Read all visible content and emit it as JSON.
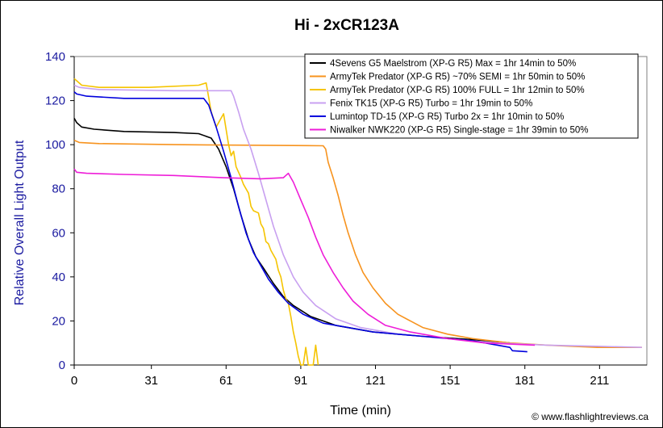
{
  "chart_data": {
    "type": "line",
    "title": "Hi - 2xCR123A",
    "xlabel": "Time (min)",
    "ylabel": "Relative Overall Light Output",
    "xlim": [
      0,
      230
    ],
    "ylim": [
      0,
      140
    ],
    "x_ticks": [
      "0",
      "31",
      "61",
      "91",
      "121",
      "151",
      "181",
      "211"
    ],
    "y_ticks": [
      "0",
      "20",
      "40",
      "60",
      "80",
      "100",
      "120",
      "140"
    ],
    "grid": false,
    "legend_position": "top-right",
    "credit": "© www.flashlightreviews.ca",
    "series": [
      {
        "name": "4Sevens G5 Maelstrom (XP-G R5) Max = 1hr 14min to 50%",
        "color": "#000000",
        "points": [
          [
            0,
            112
          ],
          [
            1,
            110
          ],
          [
            3,
            108
          ],
          [
            8,
            107
          ],
          [
            20,
            106
          ],
          [
            40,
            105.5
          ],
          [
            50,
            105
          ],
          [
            55,
            103
          ],
          [
            58,
            98
          ],
          [
            61,
            90
          ],
          [
            64,
            80
          ],
          [
            67,
            68
          ],
          [
            70,
            57
          ],
          [
            73,
            49
          ],
          [
            76,
            44
          ],
          [
            80,
            37
          ],
          [
            84,
            31
          ],
          [
            88,
            27
          ],
          [
            95,
            22
          ],
          [
            105,
            18
          ],
          [
            120,
            15
          ],
          [
            140,
            13
          ],
          [
            160,
            11.5
          ],
          [
            175,
            10
          ]
        ]
      },
      {
        "name": "ArmyTek Predator (XP-G R5) ~70% SEMI = 1hr 50min to 50%",
        "color": "#f7931e",
        "points": [
          [
            0,
            102
          ],
          [
            2,
            101
          ],
          [
            10,
            100.5
          ],
          [
            40,
            100
          ],
          [
            100,
            99.5
          ],
          [
            101,
            98
          ],
          [
            102,
            92
          ],
          [
            104,
            85
          ],
          [
            106,
            77
          ],
          [
            108,
            68
          ],
          [
            110,
            60
          ],
          [
            113,
            50
          ],
          [
            116,
            42
          ],
          [
            120,
            35
          ],
          [
            125,
            28
          ],
          [
            130,
            23
          ],
          [
            140,
            17
          ],
          [
            150,
            14
          ],
          [
            160,
            12
          ],
          [
            175,
            10
          ],
          [
            190,
            9
          ],
          [
            210,
            8
          ],
          [
            228,
            8
          ]
        ]
      },
      {
        "name": "ArmyTek Predator (XP-G R5) 100% FULL = 1hr 12min to 50%",
        "color": "#f5c400",
        "points": [
          [
            0,
            130
          ],
          [
            1,
            129
          ],
          [
            3,
            127
          ],
          [
            10,
            126
          ],
          [
            30,
            126
          ],
          [
            50,
            127
          ],
          [
            53,
            128
          ],
          [
            55,
            115
          ],
          [
            57,
            108
          ],
          [
            59,
            112
          ],
          [
            60,
            114
          ],
          [
            62,
            100
          ],
          [
            63,
            95
          ],
          [
            64,
            97
          ],
          [
            65,
            90
          ],
          [
            67,
            85
          ],
          [
            68,
            82
          ],
          [
            70,
            78
          ],
          [
            71,
            72
          ],
          [
            72,
            70
          ],
          [
            74,
            69
          ],
          [
            75,
            64
          ],
          [
            76,
            62
          ],
          [
            77,
            56
          ],
          [
            78,
            55
          ],
          [
            79,
            52
          ],
          [
            81,
            48
          ],
          [
            82,
            43
          ],
          [
            83,
            40
          ],
          [
            84,
            34
          ],
          [
            85,
            30
          ],
          [
            86,
            28
          ],
          [
            87,
            22
          ],
          [
            88,
            15
          ],
          [
            89,
            10
          ],
          [
            90,
            4
          ],
          [
            91,
            0
          ],
          [
            92,
            0
          ],
          [
            93,
            8
          ],
          [
            94,
            0
          ],
          [
            96,
            0
          ],
          [
            97,
            9
          ],
          [
            98,
            0
          ]
        ]
      },
      {
        "name": "Fenix TK15 (XP-G R5) Turbo = 1hr 19min to 50%",
        "color": "#c8a0f0",
        "points": [
          [
            0,
            127
          ],
          [
            2,
            126
          ],
          [
            10,
            125
          ],
          [
            40,
            124.5
          ],
          [
            63,
            124.5
          ],
          [
            64,
            122
          ],
          [
            66,
            115
          ],
          [
            68,
            107
          ],
          [
            71,
            98
          ],
          [
            74,
            87
          ],
          [
            77,
            75
          ],
          [
            80,
            63
          ],
          [
            84,
            50
          ],
          [
            88,
            40
          ],
          [
            92,
            33
          ],
          [
            97,
            27
          ],
          [
            105,
            21
          ],
          [
            115,
            17
          ],
          [
            130,
            14
          ],
          [
            150,
            12
          ],
          [
            170,
            10
          ],
          [
            190,
            9
          ],
          [
            210,
            8.5
          ],
          [
            228,
            8
          ]
        ]
      },
      {
        "name": "Lumintop TD-15 (XP-G R5) Turbo 2x = 1hr 10min to 50%",
        "color": "#0000dd",
        "points": [
          [
            0,
            124
          ],
          [
            1,
            123
          ],
          [
            5,
            122
          ],
          [
            20,
            121
          ],
          [
            40,
            121
          ],
          [
            52,
            121
          ],
          [
            54,
            118
          ],
          [
            57,
            108
          ],
          [
            60,
            97
          ],
          [
            63,
            85
          ],
          [
            66,
            72
          ],
          [
            69,
            60
          ],
          [
            72,
            51
          ],
          [
            75,
            45
          ],
          [
            78,
            39
          ],
          [
            82,
            33
          ],
          [
            86,
            28
          ],
          [
            92,
            23
          ],
          [
            100,
            19
          ],
          [
            110,
            17
          ],
          [
            120,
            15
          ],
          [
            140,
            13
          ],
          [
            160,
            11
          ],
          [
            170,
            9
          ],
          [
            175,
            8
          ],
          [
            176,
            6.5
          ],
          [
            182,
            6
          ]
        ]
      },
      {
        "name": "Niwalker NWK220 (XP-G R5) Single-stage = 1hr 39min to 50%",
        "color": "#ee1dd8",
        "points": [
          [
            0,
            89
          ],
          [
            1,
            87.5
          ],
          [
            5,
            87
          ],
          [
            20,
            86.5
          ],
          [
            40,
            86
          ],
          [
            60,
            85
          ],
          [
            75,
            84.5
          ],
          [
            84,
            85
          ],
          [
            85,
            86
          ],
          [
            86,
            87
          ],
          [
            88,
            83
          ],
          [
            91,
            75
          ],
          [
            94,
            67
          ],
          [
            97,
            58
          ],
          [
            100,
            50
          ],
          [
            104,
            42
          ],
          [
            108,
            35
          ],
          [
            112,
            29
          ],
          [
            118,
            23
          ],
          [
            125,
            18
          ],
          [
            135,
            15
          ],
          [
            150,
            12
          ],
          [
            165,
            10
          ],
          [
            175,
            9.5
          ],
          [
            185,
            9
          ]
        ]
      }
    ]
  }
}
